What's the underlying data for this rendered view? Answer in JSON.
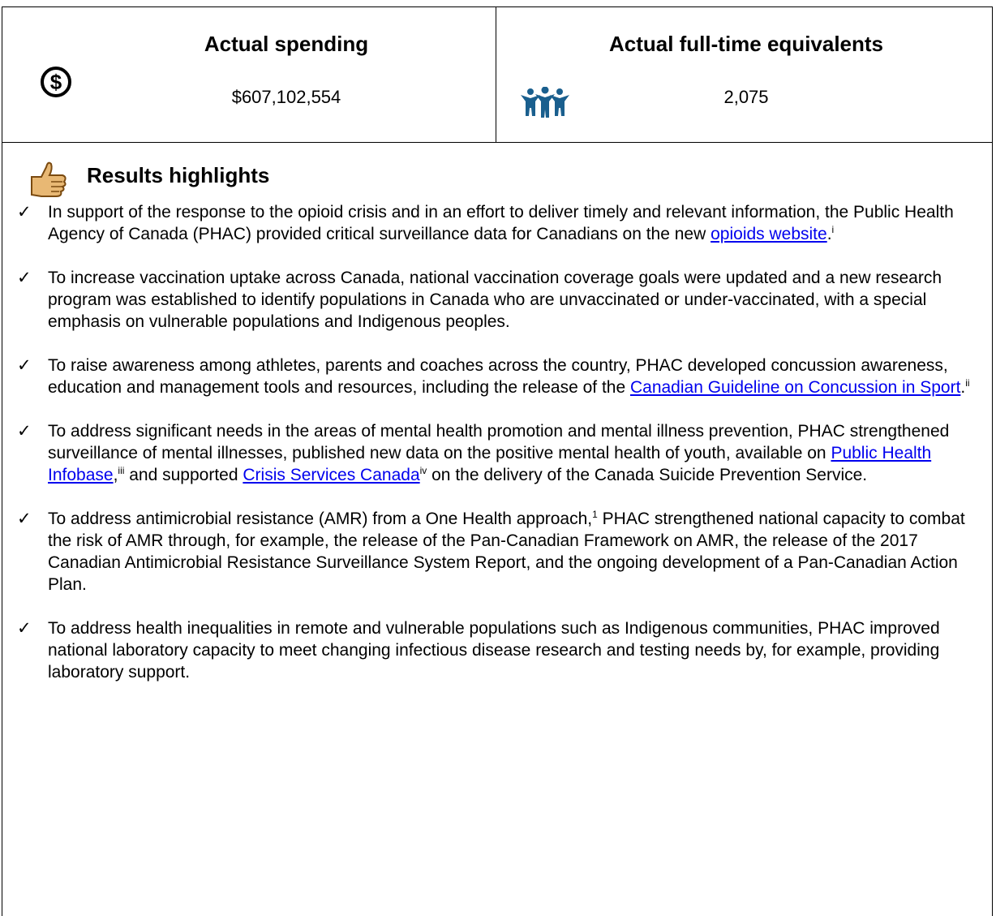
{
  "spending": {
    "title": "Actual spending",
    "value": "$607,102,554"
  },
  "fte": {
    "title": "Actual full-time equivalents",
    "value": "2,075"
  },
  "highlights": {
    "title": "Results highlights",
    "items": [
      [
        {
          "text": "In support of the response to the opioid crisis and in an effort to deliver timely and relevant information, the Public Health Agency of Canada (PHAC) provided critical surveillance data for Canadians on the new "
        },
        {
          "link": "opioids website"
        },
        {
          "text": "."
        },
        {
          "sup": "i"
        }
      ],
      [
        {
          "text": "To increase vaccination uptake across Canada, national vaccination coverage goals were updated and a new research program was established to identify populations in Canada who are unvaccinated or under-vaccinated, with a special emphasis on vulnerable populations and Indigenous peoples."
        }
      ],
      [
        {
          "text": "To raise awareness among athletes, parents and coaches across the country, PHAC developed concussion awareness, education and management tools and resources, including the release of the "
        },
        {
          "link": "Canadian Guideline on Concussion in Sport"
        },
        {
          "text": "."
        },
        {
          "sup": "ii"
        }
      ],
      [
        {
          "text": "To address significant needs in the areas of mental health promotion and mental illness prevention, PHAC strengthened surveillance of mental illnesses, published new data on the positive mental health of youth, available on "
        },
        {
          "link": "Public Health Infobase"
        },
        {
          "text": ","
        },
        {
          "sup": "iii"
        },
        {
          "text": " and supported "
        },
        {
          "link": "Crisis Services Canada"
        },
        {
          "sup": "iv"
        },
        {
          "text": " on the delivery of the Canada Suicide Prevention Service."
        }
      ],
      [
        {
          "text": "To address antimicrobial resistance (AMR) from a One Health approach,"
        },
        {
          "sup": "1"
        },
        {
          "text": " PHAC strengthened national capacity to combat the risk of AMR through, for example, the release of the Pan-Canadian Framework on AMR, the release of the 2017 Canadian Antimicrobial Resistance Surveillance System Report, and the ongoing development of a Pan-Canadian Action Plan."
        }
      ],
      [
        {
          "text": "To address health inequalities in remote and vulnerable populations such as Indigenous communities, PHAC improved national laboratory capacity to meet changing infectious disease research and testing needs by, for example, providing laboratory support."
        }
      ]
    ]
  }
}
